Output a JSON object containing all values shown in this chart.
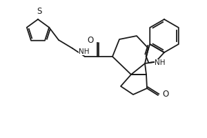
{
  "bg_color": "#ffffff",
  "line_color": "#1a1a1a",
  "line_width": 1.3,
  "font_size": 7.5,
  "figsize": [
    3.0,
    2.0
  ],
  "dpi": 100,
  "xlim": [
    0,
    300
  ],
  "ylim": [
    0,
    200
  ]
}
